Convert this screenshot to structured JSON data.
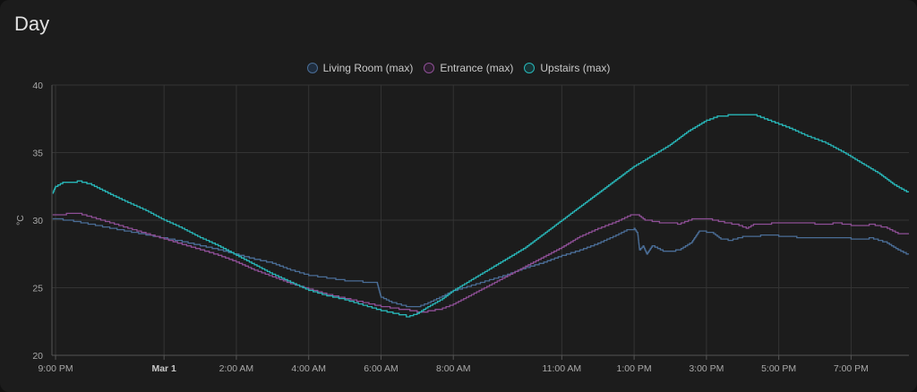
{
  "card": {
    "title": "Day"
  },
  "chart_data": {
    "type": "line",
    "ylabel": "°C",
    "ylim": [
      20,
      40
    ],
    "yticks": [
      20,
      25,
      30,
      35,
      40
    ],
    "xlim": [
      20.9,
      44.6
    ],
    "xticks": [
      {
        "x": 21,
        "label": "9:00 PM",
        "bold": false
      },
      {
        "x": 24,
        "label": "Mar 1",
        "bold": true
      },
      {
        "x": 26,
        "label": "2:00 AM",
        "bold": false
      },
      {
        "x": 28,
        "label": "4:00 AM",
        "bold": false
      },
      {
        "x": 30,
        "label": "6:00 AM",
        "bold": false
      },
      {
        "x": 32,
        "label": "8:00 AM",
        "bold": false
      },
      {
        "x": 35,
        "label": "11:00 AM",
        "bold": false
      },
      {
        "x": 37,
        "label": "1:00 PM",
        "bold": false
      },
      {
        "x": 39,
        "label": "3:00 PM",
        "bold": false
      },
      {
        "x": 41,
        "label": "5:00 PM",
        "bold": false
      },
      {
        "x": 43,
        "label": "7:00 PM",
        "bold": false
      }
    ],
    "grid": true,
    "legend_position": "top-center",
    "series": [
      {
        "name": "Living Room (max)",
        "color": "#4a6d96",
        "fill": "#1f2d3e",
        "points": [
          [
            20.92,
            30.1
          ],
          [
            21.5,
            29.9
          ],
          [
            22.5,
            29.4
          ],
          [
            23.5,
            28.9
          ],
          [
            24.5,
            28.4
          ],
          [
            25.5,
            27.8
          ],
          [
            26.5,
            27.1
          ],
          [
            27.0,
            26.8
          ],
          [
            27.5,
            26.3
          ],
          [
            28.0,
            25.9
          ],
          [
            28.5,
            25.7
          ],
          [
            29.0,
            25.5
          ],
          [
            29.5,
            25.4
          ],
          [
            29.9,
            25.3
          ],
          [
            30.0,
            24.3
          ],
          [
            30.3,
            23.9
          ],
          [
            30.7,
            23.6
          ],
          [
            31.0,
            23.6
          ],
          [
            31.3,
            23.9
          ],
          [
            31.7,
            24.4
          ],
          [
            32.0,
            24.8
          ],
          [
            32.5,
            25.2
          ],
          [
            33.0,
            25.6
          ],
          [
            33.5,
            26.0
          ],
          [
            34.0,
            26.5
          ],
          [
            34.5,
            26.9
          ],
          [
            35.0,
            27.4
          ],
          [
            35.5,
            27.8
          ],
          [
            36.0,
            28.3
          ],
          [
            36.5,
            28.9
          ],
          [
            36.8,
            29.3
          ],
          [
            37.0,
            29.4
          ],
          [
            37.1,
            29.0
          ],
          [
            37.15,
            27.8
          ],
          [
            37.25,
            28.1
          ],
          [
            37.35,
            27.5
          ],
          [
            37.5,
            28.1
          ],
          [
            37.8,
            27.7
          ],
          [
            38.0,
            27.7
          ],
          [
            38.3,
            27.9
          ],
          [
            38.6,
            28.4
          ],
          [
            38.8,
            29.2
          ],
          [
            39.0,
            29.1
          ],
          [
            39.2,
            29.0
          ],
          [
            39.4,
            28.6
          ],
          [
            39.6,
            28.5
          ],
          [
            40.0,
            28.8
          ],
          [
            40.5,
            28.9
          ],
          [
            41.0,
            28.8
          ],
          [
            41.5,
            28.7
          ],
          [
            42.0,
            28.7
          ],
          [
            42.5,
            28.7
          ],
          [
            43.0,
            28.6
          ],
          [
            43.5,
            28.7
          ],
          [
            44.0,
            28.3
          ],
          [
            44.3,
            27.8
          ],
          [
            44.6,
            27.4
          ]
        ]
      },
      {
        "name": "Entrance (max)",
        "color": "#8e4f96",
        "fill": "#2c1f2e",
        "points": [
          [
            20.92,
            30.4
          ],
          [
            21.3,
            30.5
          ],
          [
            21.6,
            30.5
          ],
          [
            22.0,
            30.2
          ],
          [
            22.5,
            29.8
          ],
          [
            23.0,
            29.4
          ],
          [
            23.5,
            29.0
          ],
          [
            24.0,
            28.6
          ],
          [
            24.5,
            28.2
          ],
          [
            25.0,
            27.8
          ],
          [
            25.5,
            27.4
          ],
          [
            26.0,
            26.9
          ],
          [
            26.5,
            26.3
          ],
          [
            27.0,
            25.8
          ],
          [
            27.5,
            25.3
          ],
          [
            28.0,
            24.9
          ],
          [
            28.5,
            24.5
          ],
          [
            29.0,
            24.2
          ],
          [
            29.5,
            23.9
          ],
          [
            30.0,
            23.6
          ],
          [
            30.5,
            23.4
          ],
          [
            30.8,
            23.3
          ],
          [
            31.0,
            23.2
          ],
          [
            31.3,
            23.3
          ],
          [
            31.7,
            23.5
          ],
          [
            32.0,
            23.8
          ],
          [
            32.5,
            24.5
          ],
          [
            33.0,
            25.2
          ],
          [
            33.5,
            25.9
          ],
          [
            34.0,
            26.6
          ],
          [
            34.5,
            27.3
          ],
          [
            35.0,
            28.0
          ],
          [
            35.5,
            28.8
          ],
          [
            36.0,
            29.4
          ],
          [
            36.5,
            29.9
          ],
          [
            36.9,
            30.4
          ],
          [
            37.1,
            30.4
          ],
          [
            37.3,
            30.0
          ],
          [
            37.7,
            29.8
          ],
          [
            38.2,
            29.7
          ],
          [
            38.6,
            30.1
          ],
          [
            39.0,
            30.1
          ],
          [
            39.5,
            29.8
          ],
          [
            39.9,
            29.6
          ],
          [
            40.1,
            29.4
          ],
          [
            40.3,
            29.7
          ],
          [
            40.8,
            29.8
          ],
          [
            41.5,
            29.8
          ],
          [
            42.0,
            29.7
          ],
          [
            42.5,
            29.8
          ],
          [
            43.0,
            29.6
          ],
          [
            43.5,
            29.7
          ],
          [
            44.0,
            29.4
          ],
          [
            44.3,
            29.0
          ],
          [
            44.6,
            28.9
          ]
        ]
      },
      {
        "name": "Upstairs (max)",
        "color": "#28b6b8",
        "fill": "#173536",
        "points": [
          [
            20.92,
            32.0
          ],
          [
            21.0,
            32.5
          ],
          [
            21.2,
            32.8
          ],
          [
            21.6,
            32.9
          ],
          [
            22.0,
            32.6
          ],
          [
            22.3,
            32.2
          ],
          [
            22.6,
            31.8
          ],
          [
            23.0,
            31.3
          ],
          [
            23.5,
            30.7
          ],
          [
            24.0,
            30.0
          ],
          [
            24.5,
            29.4
          ],
          [
            25.0,
            28.7
          ],
          [
            25.5,
            28.1
          ],
          [
            26.0,
            27.4
          ],
          [
            26.5,
            26.7
          ],
          [
            27.0,
            26.0
          ],
          [
            27.5,
            25.4
          ],
          [
            28.0,
            24.8
          ],
          [
            28.5,
            24.4
          ],
          [
            29.0,
            24.1
          ],
          [
            29.5,
            23.7
          ],
          [
            30.0,
            23.3
          ],
          [
            30.5,
            23.0
          ],
          [
            30.7,
            22.85
          ],
          [
            31.0,
            23.1
          ],
          [
            31.3,
            23.6
          ],
          [
            31.7,
            24.2
          ],
          [
            32.0,
            24.8
          ],
          [
            32.5,
            25.6
          ],
          [
            33.0,
            26.4
          ],
          [
            33.5,
            27.2
          ],
          [
            34.0,
            28.0
          ],
          [
            34.5,
            29.0
          ],
          [
            35.0,
            30.0
          ],
          [
            35.5,
            31.0
          ],
          [
            36.0,
            32.0
          ],
          [
            36.5,
            33.0
          ],
          [
            37.0,
            34.0
          ],
          [
            37.5,
            34.8
          ],
          [
            38.0,
            35.6
          ],
          [
            38.5,
            36.6
          ],
          [
            39.0,
            37.4
          ],
          [
            39.3,
            37.7
          ],
          [
            39.6,
            37.8
          ],
          [
            40.0,
            37.8
          ],
          [
            40.4,
            37.7
          ],
          [
            40.8,
            37.3
          ],
          [
            41.3,
            36.8
          ],
          [
            41.8,
            36.2
          ],
          [
            42.3,
            35.7
          ],
          [
            42.8,
            35.0
          ],
          [
            43.3,
            34.2
          ],
          [
            43.8,
            33.4
          ],
          [
            44.2,
            32.6
          ],
          [
            44.6,
            32.0
          ]
        ]
      }
    ]
  }
}
